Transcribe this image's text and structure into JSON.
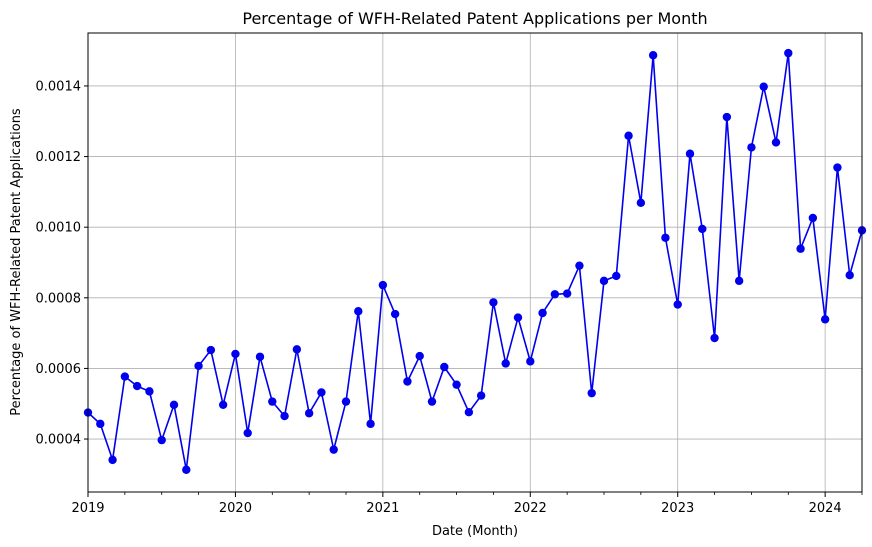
{
  "chart_data": {
    "type": "line",
    "title": "Percentage of WFH-Related Patent Applications per Month",
    "xlabel": "Date (Month)",
    "ylabel": "Percentage of WFH-Related Patent Applications",
    "x_start": "2019-01",
    "xlim": [
      "2019-01",
      "2024-04"
    ],
    "ylim": [
      0.00025,
      0.00155
    ],
    "x_ticks": [
      "2019",
      "2020",
      "2021",
      "2022",
      "2023",
      "2024"
    ],
    "y_ticks": [
      "0.0004",
      "0.0006",
      "0.0008",
      "0.0010",
      "0.0012",
      "0.0014"
    ],
    "grid": true,
    "series": [
      {
        "color": "#0000ee",
        "marker": "circle",
        "x": [
          "2019-01",
          "2019-02",
          "2019-03",
          "2019-04",
          "2019-05",
          "2019-06",
          "2019-07",
          "2019-08",
          "2019-09",
          "2019-10",
          "2019-11",
          "2019-12",
          "2020-01",
          "2020-02",
          "2020-03",
          "2020-04",
          "2020-05",
          "2020-06",
          "2020-07",
          "2020-08",
          "2020-09",
          "2020-10",
          "2020-11",
          "2020-12",
          "2021-01",
          "2021-02",
          "2021-03",
          "2021-04",
          "2021-05",
          "2021-06",
          "2021-07",
          "2021-08",
          "2021-09",
          "2021-10",
          "2021-11",
          "2021-12",
          "2022-01",
          "2022-02",
          "2022-03",
          "2022-04",
          "2022-05",
          "2022-06",
          "2022-07",
          "2022-08",
          "2022-09",
          "2022-10",
          "2022-11",
          "2022-12",
          "2023-01",
          "2023-02",
          "2023-03",
          "2023-04",
          "2023-05",
          "2023-06",
          "2023-07",
          "2023-08",
          "2023-09",
          "2023-10",
          "2023-11",
          "2023-12",
          "2024-01",
          "2024-02",
          "2024-03",
          "2024-04"
        ],
        "values": [
          0.000475,
          0.000443,
          0.000341,
          0.000577,
          0.00055,
          0.000535,
          0.000397,
          0.000497,
          0.000313,
          0.000607,
          0.000652,
          0.000497,
          0.000641,
          0.000417,
          0.000633,
          0.000506,
          0.000465,
          0.000654,
          0.000473,
          0.000532,
          0.00037,
          0.000506,
          0.000762,
          0.000443,
          0.000836,
          0.000754,
          0.000563,
          0.000635,
          0.000506,
          0.000604,
          0.000554,
          0.000476,
          0.000523,
          0.000787,
          0.000614,
          0.000744,
          0.00062,
          0.000757,
          0.00081,
          0.000812,
          0.000891,
          0.00053,
          0.000848,
          0.000862,
          0.001259,
          0.001069,
          0.001487,
          0.00097,
          0.000781,
          0.001208,
          0.000995,
          0.000686,
          0.001312,
          0.000848,
          0.001226,
          0.001398,
          0.00124,
          0.001493,
          0.000939,
          0.001026,
          0.000739,
          0.001169,
          0.000864,
          0.000991
        ]
      }
    ]
  }
}
